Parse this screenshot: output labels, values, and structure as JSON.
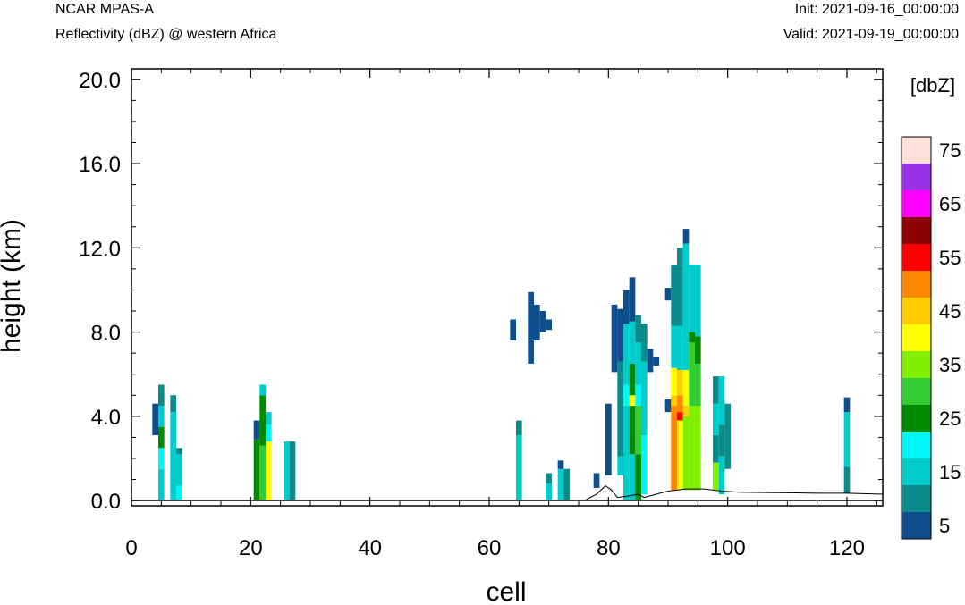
{
  "header": {
    "model": "NCAR MPAS-A",
    "field": "Reflectivity (dBZ) @ western Africa",
    "init": "Init: 2021-09-16_00:00:00",
    "valid": "Valid: 2021-09-19_00:00:00"
  },
  "chart_data": {
    "type": "heatmap",
    "xlabel": "cell",
    "ylabel": "height (km)",
    "xlim": [
      0,
      126
    ],
    "ylim": [
      -0.25,
      20.5
    ],
    "x_ticks": [
      0,
      20,
      40,
      60,
      80,
      100,
      120
    ],
    "x_tick_labels": [
      "0",
      "20",
      "40",
      "60",
      "80",
      "100",
      "120"
    ],
    "y_ticks": [
      0,
      4,
      8,
      12,
      16,
      20
    ],
    "y_tick_labels": [
      "0.0",
      "4.0",
      "8.0",
      "12.0",
      "16.0",
      "20.0"
    ],
    "cell_height_km": 0.25,
    "colorbar": {
      "title": "[dbZ]",
      "levels": [
        5,
        10,
        15,
        20,
        25,
        30,
        35,
        40,
        45,
        50,
        55,
        60,
        65,
        70,
        75,
        80
      ],
      "labels": [
        "5",
        "15",
        "25",
        "35",
        "45",
        "55",
        "65",
        "75"
      ],
      "colors": [
        "#0f4e8c",
        "#0b8b8b",
        "#00cccc",
        "#00f5f5",
        "#008a00",
        "#33cc33",
        "#80f000",
        "#ffff00",
        "#ffcc00",
        "#ff8800",
        "#ff0000",
        "#8b0000",
        "#ff00ff",
        "#9932e6",
        "#ffe0d8"
      ]
    },
    "terrain": [
      [
        76,
        0
      ],
      [
        78,
        0.3
      ],
      [
        79.5,
        0.7
      ],
      [
        80.5,
        0.5
      ],
      [
        81.5,
        0.15
      ],
      [
        83,
        0.2
      ],
      [
        85,
        0.3
      ],
      [
        86,
        0.15
      ],
      [
        88,
        0.3
      ],
      [
        90,
        0.45
      ],
      [
        93,
        0.55
      ],
      [
        96,
        0.55
      ],
      [
        99,
        0.45
      ],
      [
        102,
        0.4
      ],
      [
        108,
        0.38
      ],
      [
        115,
        0.35
      ],
      [
        120,
        0.35
      ],
      [
        126,
        0.3
      ]
    ],
    "columns": [
      {
        "x": 4,
        "segs": [
          [
            3.1,
            4.6,
            0
          ]
        ]
      },
      {
        "x": 5,
        "segs": [
          [
            0,
            1.5,
            2
          ],
          [
            1.5,
            2.5,
            3
          ],
          [
            2.5,
            3.5,
            4
          ],
          [
            3.5,
            4.5,
            2
          ],
          [
            4.5,
            5.2,
            1
          ],
          [
            5.2,
            5.5,
            1
          ]
        ]
      },
      {
        "x": 7,
        "segs": [
          [
            0,
            4.2,
            2
          ],
          [
            4.2,
            5.0,
            1
          ]
        ]
      },
      {
        "x": 8,
        "segs": [
          [
            0,
            0.7,
            3
          ],
          [
            0.7,
            2.2,
            2
          ],
          [
            2.2,
            2.5,
            1
          ]
        ]
      },
      {
        "x": 21,
        "segs": [
          [
            0,
            2.9,
            4
          ],
          [
            2.9,
            3.8,
            0
          ]
        ]
      },
      {
        "x": 22,
        "segs": [
          [
            0,
            2.6,
            5
          ],
          [
            2.6,
            4.2,
            4
          ],
          [
            4.2,
            5.0,
            4
          ],
          [
            5.0,
            5.5,
            2
          ]
        ]
      },
      {
        "x": 23,
        "segs": [
          [
            0,
            2.8,
            7
          ],
          [
            2.8,
            3.6,
            3
          ],
          [
            3.6,
            4.2,
            2
          ]
        ]
      },
      {
        "x": 26,
        "segs": [
          [
            0,
            2.8,
            2
          ]
        ]
      },
      {
        "x": 27,
        "segs": [
          [
            0,
            2.8,
            1
          ]
        ]
      },
      {
        "x": 64,
        "segs": [
          [
            7.6,
            8.6,
            0
          ]
        ]
      },
      {
        "x": 65,
        "segs": [
          [
            0,
            3.1,
            2
          ],
          [
            3.1,
            3.8,
            1
          ]
        ]
      },
      {
        "x": 67,
        "segs": [
          [
            6.5,
            9.9,
            0
          ]
        ]
      },
      {
        "x": 68,
        "segs": [
          [
            7.6,
            9.3,
            0
          ]
        ]
      },
      {
        "x": 69,
        "segs": [
          [
            8.0,
            9.0,
            0
          ]
        ]
      },
      {
        "x": 70,
        "segs": [
          [
            0,
            0.8,
            2
          ],
          [
            0.8,
            1.3,
            1
          ],
          [
            8.1,
            8.6,
            0
          ]
        ]
      },
      {
        "x": 72,
        "segs": [
          [
            0,
            1.5,
            2
          ],
          [
            1.5,
            1.9,
            0
          ]
        ]
      },
      {
        "x": 73,
        "segs": [
          [
            0,
            1.5,
            1
          ]
        ]
      },
      {
        "x": 78,
        "segs": [
          [
            0.6,
            1.3,
            0
          ]
        ]
      },
      {
        "x": 80,
        "segs": [
          [
            1.2,
            4.6,
            0
          ]
        ]
      },
      {
        "x": 81,
        "segs": [
          [
            6.1,
            9.3,
            0
          ]
        ]
      },
      {
        "x": 82,
        "segs": [
          [
            1.2,
            2.1,
            2
          ],
          [
            2.1,
            6.6,
            1
          ],
          [
            6.6,
            9.1,
            0
          ]
        ]
      },
      {
        "x": 83,
        "segs": [
          [
            0,
            4.5,
            2
          ],
          [
            4.5,
            5.5,
            3
          ],
          [
            5.5,
            8.4,
            2
          ],
          [
            8.4,
            10.0,
            0
          ]
        ]
      },
      {
        "x": 84,
        "segs": [
          [
            0,
            2.2,
            2
          ],
          [
            2.2,
            4.5,
            4
          ],
          [
            4.5,
            5.0,
            7
          ],
          [
            5.0,
            6.5,
            4
          ],
          [
            6.5,
            8.5,
            2
          ],
          [
            8.5,
            10.6,
            0
          ]
        ]
      },
      {
        "x": 85,
        "segs": [
          [
            0,
            2.2,
            4
          ],
          [
            2.2,
            4.5,
            5
          ],
          [
            4.5,
            5.5,
            3
          ],
          [
            5.5,
            7.5,
            2
          ],
          [
            7.5,
            8.8,
            1
          ]
        ]
      },
      {
        "x": 86,
        "segs": [
          [
            0.3,
            3.1,
            3
          ],
          [
            3.1,
            6.6,
            2
          ],
          [
            6.6,
            8.4,
            1
          ]
        ]
      },
      {
        "x": 87,
        "segs": [
          [
            6.1,
            7.2,
            0
          ]
        ]
      },
      {
        "x": 88,
        "segs": [
          [
            6.4,
            6.8,
            0
          ]
        ]
      },
      {
        "x": 90,
        "segs": [
          [
            4.2,
            4.8,
            0
          ],
          [
            9.5,
            10.1,
            0
          ]
        ]
      },
      {
        "x": 91,
        "segs": [
          [
            0.5,
            4.5,
            9
          ],
          [
            4.5,
            5.0,
            8
          ],
          [
            5.0,
            6.3,
            7
          ],
          [
            6.3,
            8.3,
            2
          ],
          [
            8.3,
            11.2,
            1
          ]
        ]
      },
      {
        "x": 92,
        "segs": [
          [
            0.5,
            3.8,
            7
          ],
          [
            3.8,
            4.2,
            10
          ],
          [
            4.2,
            5.0,
            9
          ],
          [
            5.0,
            6.2,
            8
          ],
          [
            6.2,
            8.3,
            2
          ],
          [
            8.3,
            11.2,
            1
          ],
          [
            11.2,
            12.0,
            1
          ]
        ]
      },
      {
        "x": 93,
        "segs": [
          [
            0.5,
            4.0,
            6
          ],
          [
            4.0,
            4.5,
            8
          ],
          [
            4.5,
            6.2,
            7
          ],
          [
            6.2,
            7.5,
            2
          ],
          [
            7.5,
            12.2,
            2
          ],
          [
            12.2,
            12.9,
            0
          ]
        ]
      },
      {
        "x": 94,
        "segs": [
          [
            0.5,
            4.5,
            6
          ],
          [
            4.5,
            7.5,
            5
          ],
          [
            7.5,
            8.0,
            4
          ],
          [
            8.0,
            11.2,
            2
          ]
        ]
      },
      {
        "x": 95,
        "segs": [
          [
            0.5,
            4.5,
            6
          ],
          [
            4.5,
            6.5,
            5
          ],
          [
            6.5,
            7.8,
            4
          ],
          [
            7.8,
            11.2,
            2
          ]
        ]
      },
      {
        "x": 98,
        "segs": [
          [
            0.5,
            1.8,
            6
          ],
          [
            1.8,
            3.1,
            1
          ],
          [
            3.1,
            4.6,
            2
          ],
          [
            4.6,
            5.9,
            1
          ]
        ]
      },
      {
        "x": 99,
        "segs": [
          [
            0.3,
            2.1,
            2
          ],
          [
            2.1,
            3.6,
            1
          ],
          [
            3.6,
            5.9,
            2
          ]
        ]
      },
      {
        "x": 100,
        "segs": [
          [
            1.5,
            4.6,
            1
          ]
        ]
      },
      {
        "x": 120,
        "segs": [
          [
            0.35,
            1.6,
            1
          ],
          [
            1.6,
            4.2,
            2
          ],
          [
            4.2,
            4.9,
            0
          ]
        ]
      }
    ]
  }
}
